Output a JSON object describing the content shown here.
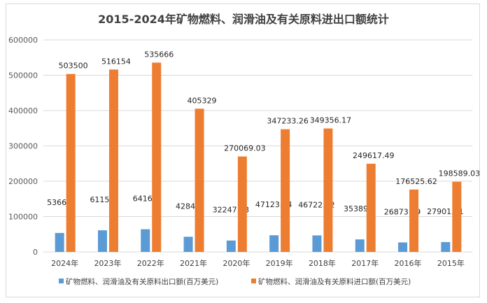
{
  "chart_data": {
    "type": "bar",
    "title": "2015-2024年矿物燃料、润滑油及有关原料进出口额统计",
    "xlabel": "",
    "ylabel": "",
    "ylim": [
      0,
      600000
    ],
    "yticks": [
      "0",
      "100000",
      "200000",
      "300000",
      "400000",
      "500000",
      "600000"
    ],
    "ytick_values": [
      0,
      100000,
      200000,
      300000,
      400000,
      500000,
      600000
    ],
    "grid": true,
    "legend_position": "bottom",
    "categories": [
      "2024年",
      "2023年",
      "2022年",
      "2021年",
      "2020年",
      "2019年",
      "2018年",
      "2017年",
      "2016年",
      "2015年"
    ],
    "series": [
      {
        "name": "矿物燃料、润滑油及有关原料出口额(百万美元)",
        "color": "#5b9bd5",
        "values": [
          53660,
          61156,
          64163,
          42848,
          32247.63,
          47123.14,
          46722.22,
          35389.1,
          26873.19,
          27901.51
        ],
        "labels": [
          "53660",
          "61156",
          "64163",
          "42848",
          "32247.63",
          "47123.14",
          "46722.22",
          "35389.1",
          "26873.19",
          "27901.51"
        ]
      },
      {
        "name": "矿物燃料、润滑油及有关原料进口额(百万美元)",
        "color": "#ed7d31",
        "values": [
          503500,
          516154,
          535666,
          405329,
          270069.03,
          347233.26,
          349356.17,
          249617.49,
          176525.62,
          198589.03
        ],
        "labels": [
          "503500",
          "516154",
          "535666",
          "405329",
          "270069.03",
          "347233.26",
          "349356.17",
          "249617.49",
          "176525.62",
          "198589.03"
        ]
      }
    ]
  }
}
